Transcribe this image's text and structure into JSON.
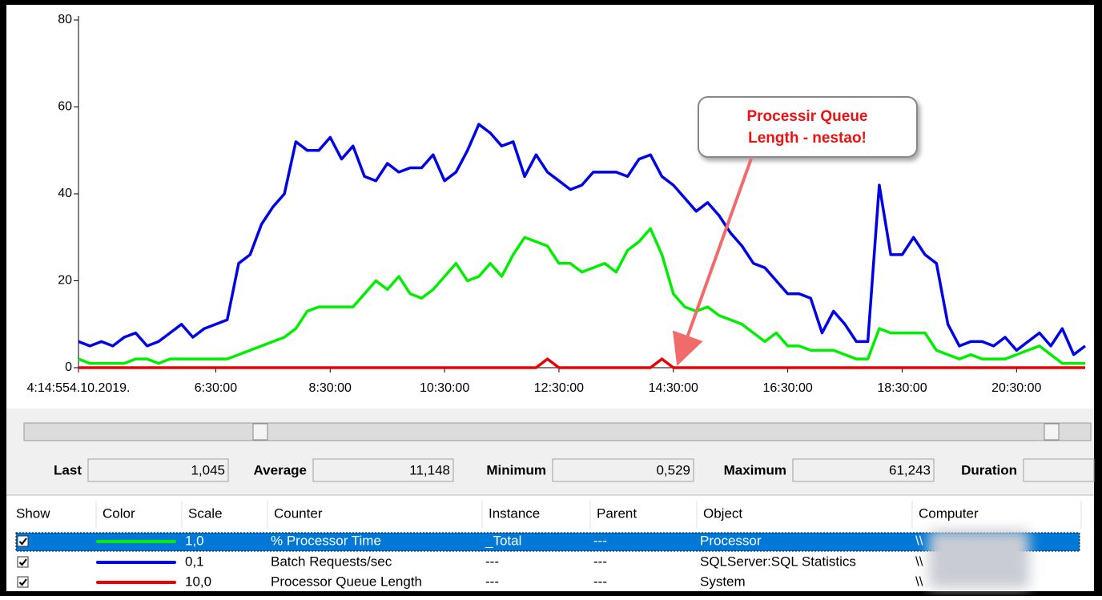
{
  "chart_data": {
    "type": "line",
    "categories": [
      "4:14:554.10.2019.",
      null,
      null,
      null,
      null,
      null,
      null,
      null,
      null,
      null,
      null,
      null,
      "6:30:00",
      null,
      null,
      null,
      null,
      null,
      null,
      null,
      null,
      null,
      "8:30:00",
      null,
      null,
      null,
      null,
      null,
      null,
      null,
      null,
      null,
      "10:30:00",
      null,
      null,
      null,
      null,
      null,
      null,
      null,
      null,
      null,
      "12:30:00",
      null,
      null,
      null,
      null,
      null,
      null,
      null,
      null,
      null,
      "14:30:00",
      null,
      null,
      null,
      null,
      null,
      null,
      null,
      null,
      null,
      "16:30:00",
      null,
      null,
      null,
      null,
      null,
      null,
      null,
      null,
      null,
      "18:30:00",
      null,
      null,
      null,
      null,
      null,
      null,
      null,
      null,
      null,
      "20:30:00",
      null,
      null,
      null,
      null,
      null,
      null
    ],
    "series": [
      {
        "name": "% Processor Time",
        "color": "#00ee00",
        "values": [
          2,
          1,
          1,
          1,
          1,
          2,
          2,
          1,
          2,
          2,
          2,
          2,
          2,
          2,
          3,
          4,
          5,
          6,
          7,
          9,
          13,
          14,
          14,
          14,
          14,
          17,
          20,
          18,
          21,
          17,
          16,
          18,
          21,
          24,
          20,
          21,
          24,
          21,
          26,
          30,
          29,
          28,
          24,
          24,
          22,
          23,
          24,
          22,
          27,
          29,
          32,
          26,
          17,
          14,
          13,
          14,
          12,
          11,
          10,
          8,
          6,
          8,
          5,
          5,
          4,
          4,
          4,
          3,
          2,
          2,
          9,
          8,
          8,
          8,
          8,
          4,
          3,
          2,
          3,
          2,
          2,
          2,
          3,
          4,
          5,
          3,
          1,
          1,
          1
        ]
      },
      {
        "name": "Batch Requests/sec",
        "color": "#0000e6",
        "values": [
          6,
          5,
          6,
          5,
          7,
          8,
          5,
          6,
          8,
          10,
          7,
          9,
          10,
          11,
          24,
          26,
          33,
          37,
          40,
          52,
          50,
          50,
          53,
          48,
          51,
          44,
          43,
          47,
          45,
          46,
          46,
          49,
          43,
          45,
          50,
          56,
          54,
          51,
          52,
          44,
          49,
          45,
          43,
          41,
          42,
          45,
          45,
          45,
          44,
          48,
          49,
          44,
          42,
          39,
          36,
          38,
          35,
          31,
          28,
          24,
          23,
          20,
          17,
          17,
          16,
          8,
          13,
          10,
          6,
          6,
          42,
          26,
          26,
          30,
          26,
          24,
          10,
          5,
          6,
          6,
          5,
          7,
          4,
          6,
          8,
          5,
          9,
          3,
          5
        ]
      },
      {
        "name": "Processor Queue Length",
        "color": "#ee0000",
        "values": [
          0,
          0,
          0,
          0,
          0,
          0,
          0,
          0,
          0,
          0,
          0,
          0,
          0,
          0,
          0,
          0,
          0,
          0,
          0,
          0,
          0,
          0,
          0,
          0,
          0,
          0,
          0,
          0,
          0,
          0,
          0,
          0,
          0,
          0,
          0,
          0,
          0,
          0,
          0,
          0,
          0,
          2,
          0,
          0,
          0,
          0,
          0,
          0,
          0,
          0,
          0,
          2,
          0,
          0,
          0,
          0,
          0,
          0,
          0,
          0,
          0,
          0,
          0,
          0,
          0,
          0,
          0,
          0,
          0,
          0,
          0,
          0,
          0,
          0,
          0,
          0,
          0,
          0,
          0,
          0,
          0,
          0,
          0,
          0,
          0,
          0,
          0,
          0,
          0
        ]
      }
    ],
    "ylim": [
      0,
      80
    ],
    "yticks": [
      0,
      20,
      40,
      60,
      80
    ],
    "annotation": [
      "Processir Queue",
      "Length - nestao!"
    ]
  },
  "stats": [
    {
      "label": "Last",
      "value": "1,045"
    },
    {
      "label": "Average",
      "value": "11,148"
    },
    {
      "label": "Minimum",
      "value": "0,529"
    },
    {
      "label": "Maximum",
      "value": "61,243"
    },
    {
      "label": "Duration"
    }
  ],
  "table": {
    "columns": [
      "Show",
      "Color",
      "Scale",
      "Counter",
      "Instance",
      "Parent",
      "Object",
      "Computer"
    ],
    "rows": [
      [
        "1,0",
        "% Processor Time",
        "_Total",
        "---",
        "Processor",
        "\\\\"
      ],
      [
        "0,1",
        "Batch Requests/sec",
        "---",
        "---",
        "SQLServer:SQL Statistics",
        "\\\\"
      ],
      [
        "10,0",
        "Processor Queue Length",
        "---",
        "---",
        "System",
        "\\\\"
      ]
    ]
  }
}
